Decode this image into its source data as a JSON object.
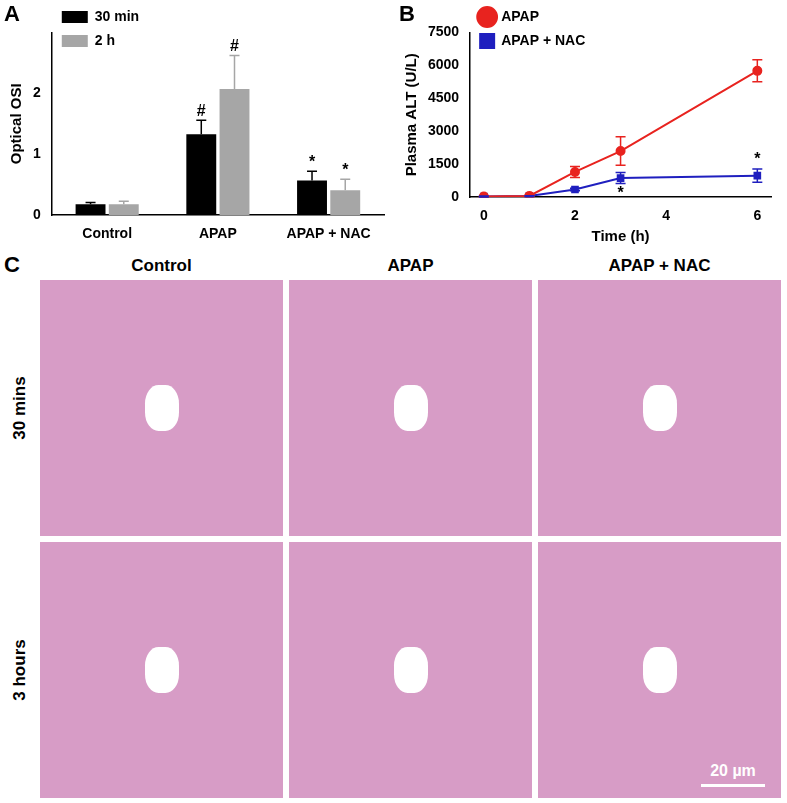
{
  "chart_data": [
    {
      "type": "bar",
      "title": "A",
      "y_label": "Optical OSI",
      "categories": [
        "Control",
        "APAP",
        "APAP + NAC"
      ],
      "series": [
        {
          "name": "30 min",
          "color": "#000000",
          "values": [
            0.18,
            1.33,
            0.57
          ],
          "errors": [
            0.03,
            0.23,
            0.15
          ]
        },
        {
          "name": "2 h",
          "color": "#a6a6a6",
          "values": [
            0.18,
            2.07,
            0.41
          ],
          "errors": [
            0.05,
            0.55,
            0.18
          ]
        }
      ],
      "ylim": [
        0,
        3
      ],
      "yticks": [
        0,
        1,
        2
      ],
      "grid": false,
      "legend": "upper left",
      "annotations": [
        {
          "text": "#",
          "series": "30 min",
          "category": "APAP",
          "position": "above"
        },
        {
          "text": "#",
          "series": "2 h",
          "category": "APAP",
          "position": "above"
        },
        {
          "text": "*",
          "series": "30 min",
          "category": "APAP + NAC",
          "position": "above"
        },
        {
          "text": "*",
          "series": "2 h",
          "category": "APAP + NAC",
          "position": "above"
        }
      ]
    },
    {
      "type": "line",
      "title": "B",
      "x_label": "Time (h)",
      "y_label": "Plasma ALT (U/L)",
      "x": [
        0,
        1,
        2,
        3,
        6
      ],
      "series": [
        {
          "name": "APAP",
          "color": "#e8231f",
          "marker": "circle",
          "values": [
            30,
            60,
            1150,
            2100,
            5750
          ],
          "errors": [
            20,
            30,
            250,
            650,
            500
          ]
        },
        {
          "name": "APAP + NAC",
          "color": "#1f1fbf",
          "marker": "square",
          "values": [
            30,
            50,
            350,
            870,
            980
          ],
          "errors": [
            20,
            20,
            60,
            250,
            300
          ]
        }
      ],
      "xlim": [
        -0.3,
        6.3
      ],
      "xticks": [
        0,
        2,
        4,
        6
      ],
      "ylim": [
        0,
        7500
      ],
      "yticks": [
        0,
        1500,
        3000,
        4500,
        6000,
        7500
      ],
      "grid": false,
      "legend": "upper left",
      "annotations": [
        {
          "text": "*",
          "series": "APAP + NAC",
          "x": 3,
          "position": "below"
        },
        {
          "text": "*",
          "series": "APAP + NAC",
          "x": 6,
          "position": "above"
        }
      ]
    }
  ],
  "histology": {
    "panel": "C",
    "columns": [
      "Control",
      "APAP",
      "APAP + NAC"
    ],
    "rows": [
      "30 mins",
      "3 hours"
    ],
    "scale_bar": "20 µm"
  }
}
